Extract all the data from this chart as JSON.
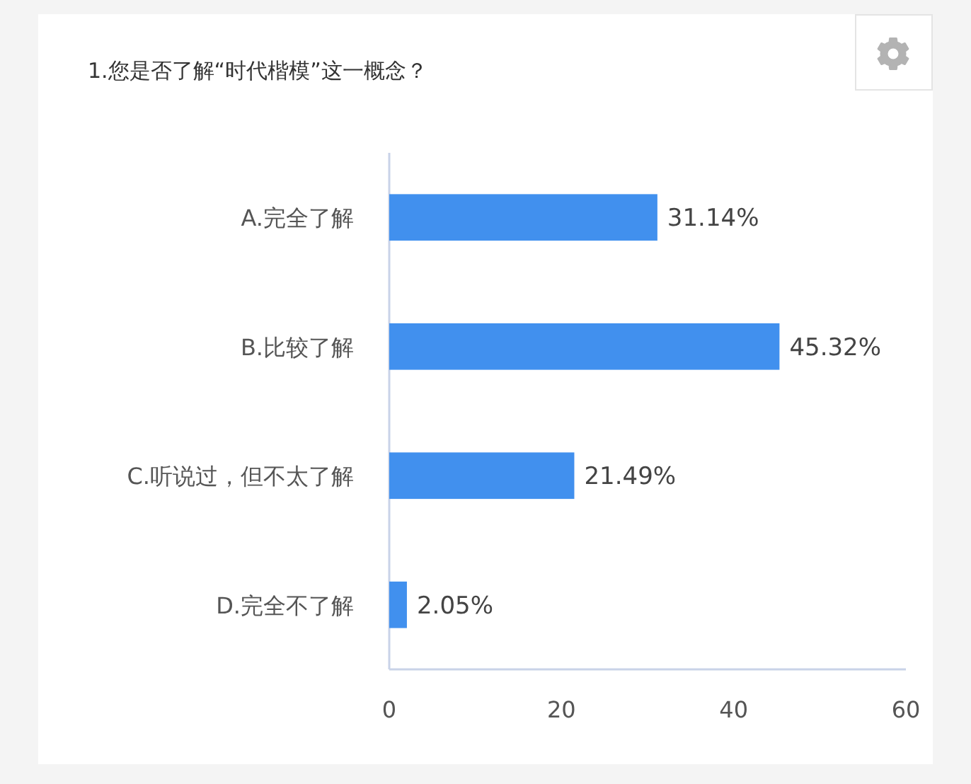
{
  "chart_data": {
    "type": "bar",
    "orientation": "horizontal",
    "title": "1.您是否了解“时代楷模”这一概念？",
    "categories": [
      "A.完全了解",
      "B.比较了解",
      "C.听说过，但不太了解",
      "D.完全不了解"
    ],
    "values": [
      31.14,
      45.32,
      21.49,
      2.05
    ],
    "value_labels": [
      "31.14%",
      "45.32%",
      "21.49%",
      "2.05%"
    ],
    "color": "#4190ee",
    "xlim": [
      0,
      60
    ],
    "xticks": [
      0,
      20,
      40,
      60
    ]
  }
}
